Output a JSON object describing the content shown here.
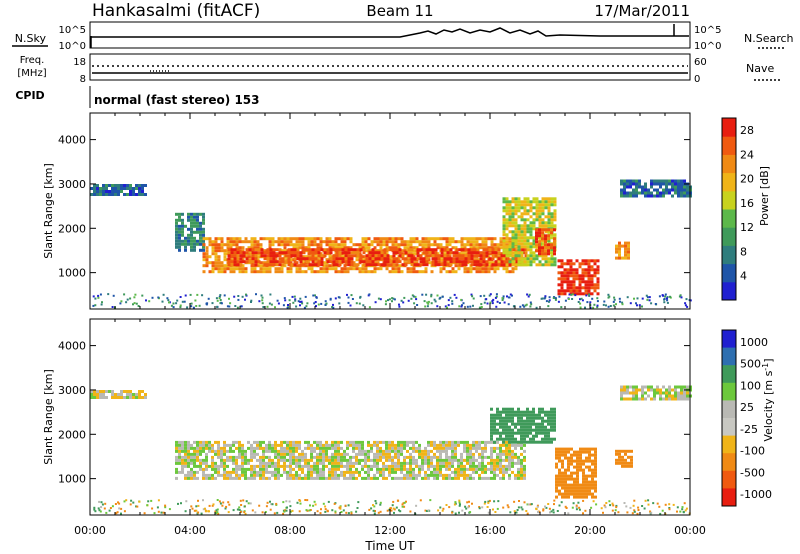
{
  "header": {
    "station": "Hankasalmi (fitACF)",
    "beam": "Beam 11",
    "date": "17/Mar/2011"
  },
  "top_panels": {
    "nsky_label": "N.Sky",
    "nsky_ticks": [
      "10^5",
      "10^0"
    ],
    "nsearch_label": "N.Search",
    "nsearch_ticks": [
      "10^5",
      "10^0"
    ],
    "freq_label_line1": "Freq.",
    "freq_label_line2": "[MHz]",
    "freq_ticks": [
      "18",
      "8"
    ],
    "nave_label": "Nave",
    "nave_ticks": [
      "60",
      "0"
    ],
    "cpid_label": "CPID",
    "cpid_text": "normal (fast stereo) 153"
  },
  "colors": {
    "power_scale": [
      "#2020d0",
      "#1f55a8",
      "#2f7d7d",
      "#3f9a5a",
      "#5cb84a",
      "#c8d21e",
      "#f0b418",
      "#f08a14",
      "#f05a10",
      "#e81e10"
    ],
    "velocity_scale": [
      "#2020d0",
      "#2e6fb0",
      "#3f9a5a",
      "#6cc83c",
      "#b9b9b4",
      "#c8c8c2",
      "#f0b418",
      "#f08a14",
      "#f05a10",
      "#e81e10"
    ]
  },
  "chart_data": [
    {
      "type": "heatmap",
      "panel": "power",
      "xlabel": "Time UT",
      "ylabel": "Slant Range [km]",
      "xlim": [
        0,
        24
      ],
      "ylim": [
        180,
        4600
      ],
      "x_ticks": [
        "00:00",
        "04:00",
        "08:00",
        "12:00",
        "16:00",
        "20:00",
        "00:00"
      ],
      "y_ticks": [
        "1000",
        "2000",
        "3000",
        "4000"
      ],
      "colorbar": {
        "label": "Power [dB]",
        "ticks": [
          "4",
          "8",
          "12",
          "16",
          "20",
          "24",
          "28"
        ],
        "range": [
          0,
          30
        ]
      },
      "regions": [
        {
          "t0": 0.0,
          "t1": 2.2,
          "r0": 2750,
          "r1": 3000,
          "value": 6
        },
        {
          "t0": 3.4,
          "t1": 4.5,
          "r0": 1500,
          "r1": 2350,
          "value": 8
        },
        {
          "t0": 4.5,
          "t1": 17.0,
          "r0": 1050,
          "r1": 1800,
          "value": 22
        },
        {
          "t0": 5.5,
          "t1": 17.5,
          "r0": 1150,
          "r1": 1550,
          "value": 27
        },
        {
          "t0": 16.5,
          "t1": 18.6,
          "r0": 1200,
          "r1": 2700,
          "value": 17
        },
        {
          "t0": 17.8,
          "t1": 18.6,
          "r0": 1400,
          "r1": 2000,
          "value": 26
        },
        {
          "t0": 18.7,
          "t1": 20.3,
          "r0": 550,
          "r1": 1300,
          "value": 28
        },
        {
          "t0": 21.0,
          "t1": 21.6,
          "r0": 1300,
          "r1": 1700,
          "value": 22
        },
        {
          "t0": 21.2,
          "t1": 24.0,
          "r0": 2750,
          "r1": 3100,
          "value": 6
        }
      ]
    },
    {
      "type": "heatmap",
      "panel": "velocity",
      "xlabel": "Time UT",
      "ylabel": "Slant Range [km]",
      "xlim": [
        0,
        24
      ],
      "ylim": [
        180,
        4600
      ],
      "x_ticks": [
        "00:00",
        "04:00",
        "08:00",
        "12:00",
        "16:00",
        "20:00",
        "00:00"
      ],
      "y_ticks": [
        "1000",
        "2000",
        "3000",
        "4000"
      ],
      "colorbar": {
        "label": "Velocity [m s^-1]",
        "ticks": [
          "1000",
          "500",
          "100",
          "25",
          "-25",
          "-100",
          "-500",
          "-1000"
        ]
      },
      "regions": [
        {
          "t0": 0.0,
          "t1": 2.2,
          "r0": 2800,
          "r1": 3000,
          "value": 0
        },
        {
          "t0": 3.4,
          "t1": 17.4,
          "r0": 1000,
          "r1": 1850,
          "value": 0
        },
        {
          "t0": 16.0,
          "t1": 18.6,
          "r0": 1800,
          "r1": 2600,
          "value": 300
        },
        {
          "t0": 18.6,
          "t1": 20.2,
          "r0": 600,
          "r1": 1700,
          "value": -300
        },
        {
          "t0": 21.0,
          "t1": 21.7,
          "r0": 1250,
          "r1": 1650,
          "value": -300
        },
        {
          "t0": 21.2,
          "t1": 24.0,
          "r0": 2800,
          "r1": 3100,
          "value": 0
        }
      ]
    }
  ]
}
